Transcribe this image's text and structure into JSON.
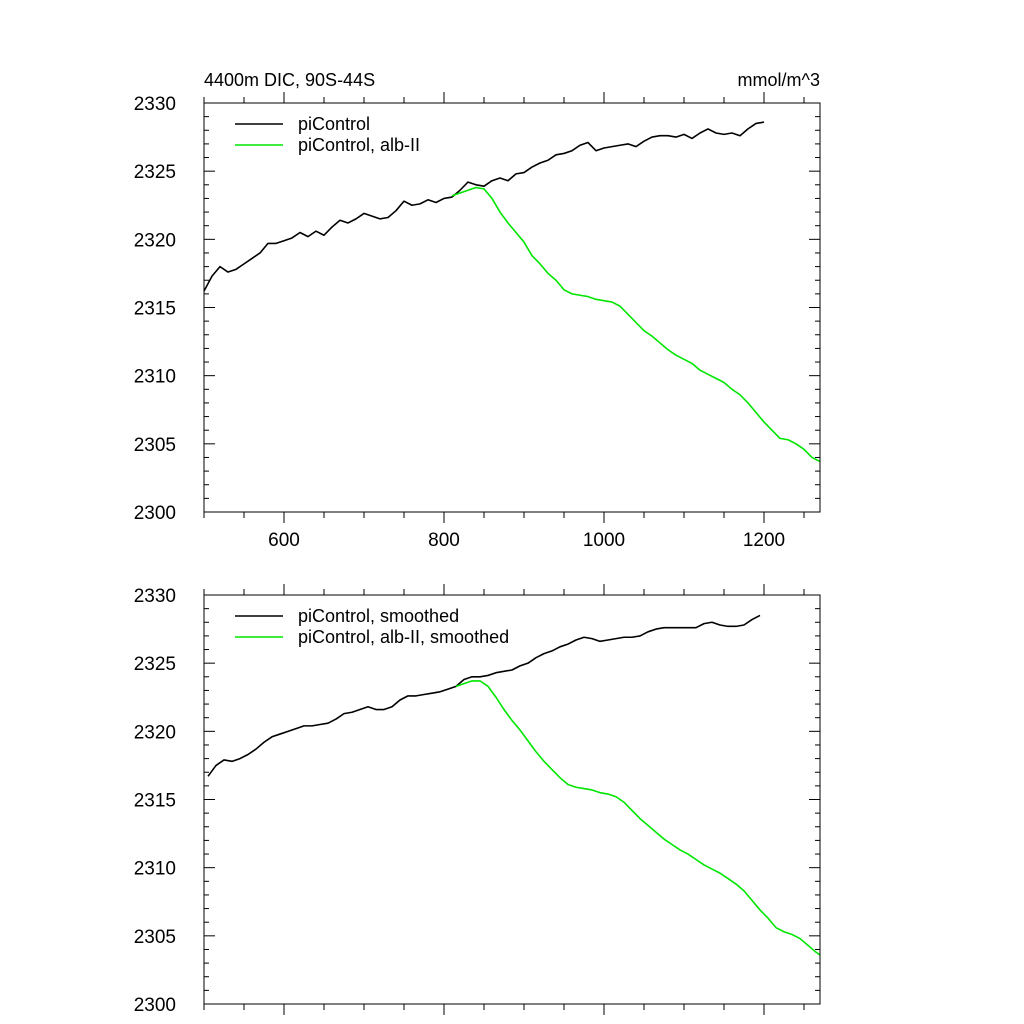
{
  "header": {
    "left_title": "4400m DIC, 90S-44S",
    "right_title": "mmol/m^3"
  },
  "colors": {
    "picontrol": "#000000",
    "albii": "#00e600"
  },
  "chart_data": [
    {
      "type": "line",
      "title": "4400m DIC, 90S-44S",
      "xlabel": "",
      "ylabel": "",
      "units": "mmol/m^3",
      "xlim": [
        500,
        1270
      ],
      "ylim": [
        2300,
        2330
      ],
      "xticks": [
        600,
        800,
        1000,
        1200
      ],
      "xticklabels": [
        "600",
        "800",
        "1000",
        "1200"
      ],
      "yticks": [
        2300,
        2305,
        2310,
        2315,
        2320,
        2325,
        2330
      ],
      "yticklabels": [
        "2300",
        "2305",
        "2310",
        "2315",
        "2320",
        "2325",
        "2330"
      ],
      "legend_position": "top-left",
      "series": [
        {
          "name": "piControl",
          "color": "#000000",
          "x": [
            500,
            510,
            520,
            530,
            540,
            550,
            560,
            570,
            580,
            590,
            600,
            610,
            620,
            630,
            640,
            650,
            660,
            670,
            680,
            690,
            700,
            710,
            720,
            730,
            740,
            750,
            760,
            770,
            780,
            790,
            800,
            810,
            820,
            830,
            840,
            850,
            860,
            870,
            880,
            890,
            900,
            910,
            920,
            930,
            940,
            950,
            960,
            970,
            980,
            990,
            1000,
            1010,
            1020,
            1030,
            1040,
            1050,
            1060,
            1070,
            1080,
            1090,
            1100,
            1110,
            1120,
            1130,
            1140,
            1150,
            1160,
            1170,
            1180,
            1190,
            1200
          ],
          "y": [
            2316.2,
            2317.3,
            2318.0,
            2317.6,
            2317.8,
            2318.2,
            2318.6,
            2319.0,
            2319.7,
            2319.7,
            2319.9,
            2320.1,
            2320.5,
            2320.2,
            2320.6,
            2320.3,
            2320.9,
            2321.4,
            2321.2,
            2321.5,
            2321.9,
            2321.7,
            2321.5,
            2321.6,
            2322.1,
            2322.8,
            2322.5,
            2322.6,
            2322.9,
            2322.7,
            2323.0,
            2323.1,
            2323.6,
            2324.2,
            2324.0,
            2323.9,
            2324.3,
            2324.5,
            2324.3,
            2324.8,
            2324.9,
            2325.3,
            2325.6,
            2325.8,
            2326.2,
            2326.3,
            2326.5,
            2326.9,
            2327.1,
            2326.5,
            2326.7,
            2326.8,
            2326.9,
            2327.0,
            2326.8,
            2327.2,
            2327.5,
            2327.6,
            2327.6,
            2327.5,
            2327.7,
            2327.4,
            2327.8,
            2328.1,
            2327.8,
            2327.7,
            2327.8,
            2327.6,
            2328.1,
            2328.5,
            2328.6
          ]
        },
        {
          "name": "piControl, alb-II",
          "color": "#00e600",
          "x": [
            810,
            820,
            830,
            840,
            850,
            860,
            870,
            880,
            890,
            900,
            910,
            920,
            930,
            940,
            950,
            960,
            970,
            980,
            990,
            1000,
            1010,
            1020,
            1030,
            1040,
            1050,
            1060,
            1070,
            1080,
            1090,
            1100,
            1110,
            1120,
            1130,
            1140,
            1150,
            1160,
            1170,
            1180,
            1190,
            1200,
            1210,
            1220,
            1230,
            1240,
            1250,
            1260,
            1270
          ],
          "y": [
            2323.2,
            2323.4,
            2323.6,
            2323.8,
            2323.7,
            2323.0,
            2322.0,
            2321.2,
            2320.5,
            2319.8,
            2318.8,
            2318.2,
            2317.5,
            2317.0,
            2316.3,
            2316.0,
            2315.9,
            2315.8,
            2315.6,
            2315.5,
            2315.4,
            2315.1,
            2314.5,
            2313.9,
            2313.3,
            2312.9,
            2312.4,
            2311.9,
            2311.5,
            2311.2,
            2310.9,
            2310.4,
            2310.1,
            2309.8,
            2309.5,
            2309.0,
            2308.6,
            2308.0,
            2307.3,
            2306.6,
            2306.0,
            2305.4,
            2305.3,
            2305.0,
            2304.6,
            2304.0,
            2303.7
          ]
        }
      ]
    },
    {
      "type": "line",
      "title": "",
      "xlabel": "",
      "ylabel": "",
      "xlim": [
        500,
        1270
      ],
      "ylim": [
        2300,
        2330
      ],
      "xticks": [
        600,
        800,
        1000,
        1200
      ],
      "xticklabels": [],
      "yticks": [
        2300,
        2305,
        2310,
        2315,
        2320,
        2325,
        2330
      ],
      "yticklabels": [
        "2300",
        "2305",
        "2310",
        "2315",
        "2320",
        "2325",
        "2330"
      ],
      "legend_position": "top-left",
      "series": [
        {
          "name": "piControl, smoothed",
          "color": "#000000",
          "x": [
            505,
            515,
            525,
            535,
            545,
            555,
            565,
            575,
            585,
            595,
            605,
            615,
            625,
            635,
            645,
            655,
            665,
            675,
            685,
            695,
            705,
            715,
            725,
            735,
            745,
            755,
            765,
            775,
            785,
            795,
            805,
            815,
            825,
            835,
            845,
            855,
            865,
            875,
            885,
            895,
            905,
            915,
            925,
            935,
            945,
            955,
            965,
            975,
            985,
            995,
            1005,
            1015,
            1025,
            1035,
            1045,
            1055,
            1065,
            1075,
            1085,
            1095,
            1105,
            1115,
            1125,
            1135,
            1145,
            1155,
            1165,
            1175,
            1185,
            1195
          ],
          "y": [
            2316.7,
            2317.5,
            2317.9,
            2317.8,
            2318.0,
            2318.3,
            2318.7,
            2319.2,
            2319.6,
            2319.8,
            2320.0,
            2320.2,
            2320.4,
            2320.4,
            2320.5,
            2320.6,
            2320.9,
            2321.3,
            2321.4,
            2321.6,
            2321.8,
            2321.6,
            2321.6,
            2321.8,
            2322.3,
            2322.6,
            2322.6,
            2322.7,
            2322.8,
            2322.9,
            2323.1,
            2323.3,
            2323.8,
            2324.0,
            2324.0,
            2324.1,
            2324.3,
            2324.4,
            2324.5,
            2324.8,
            2325.0,
            2325.4,
            2325.7,
            2325.9,
            2326.2,
            2326.4,
            2326.7,
            2326.9,
            2326.8,
            2326.6,
            2326.7,
            2326.8,
            2326.9,
            2326.9,
            2327.0,
            2327.3,
            2327.5,
            2327.6,
            2327.6,
            2327.6,
            2327.6,
            2327.6,
            2327.9,
            2328.0,
            2327.8,
            2327.7,
            2327.7,
            2327.8,
            2328.2,
            2328.5
          ]
        },
        {
          "name": "piControl, alb-II, smoothed",
          "color": "#00e600",
          "x": [
            815,
            825,
            835,
            845,
            855,
            865,
            875,
            885,
            895,
            905,
            915,
            925,
            935,
            945,
            955,
            965,
            975,
            985,
            995,
            1005,
            1015,
            1025,
            1035,
            1045,
            1055,
            1065,
            1075,
            1085,
            1095,
            1105,
            1115,
            1125,
            1135,
            1145,
            1155,
            1165,
            1175,
            1185,
            1195,
            1205,
            1215,
            1225,
            1235,
            1245,
            1255,
            1265,
            1270
          ],
          "y": [
            2323.3,
            2323.5,
            2323.7,
            2323.7,
            2323.3,
            2322.5,
            2321.6,
            2320.8,
            2320.1,
            2319.3,
            2318.5,
            2317.8,
            2317.2,
            2316.6,
            2316.1,
            2315.9,
            2315.8,
            2315.7,
            2315.5,
            2315.4,
            2315.2,
            2314.8,
            2314.2,
            2313.6,
            2313.1,
            2312.6,
            2312.1,
            2311.7,
            2311.3,
            2311.0,
            2310.6,
            2310.2,
            2309.9,
            2309.6,
            2309.2,
            2308.8,
            2308.3,
            2307.6,
            2306.9,
            2306.3,
            2305.6,
            2305.3,
            2305.1,
            2304.8,
            2304.3,
            2303.8,
            2303.6
          ]
        }
      ]
    }
  ]
}
